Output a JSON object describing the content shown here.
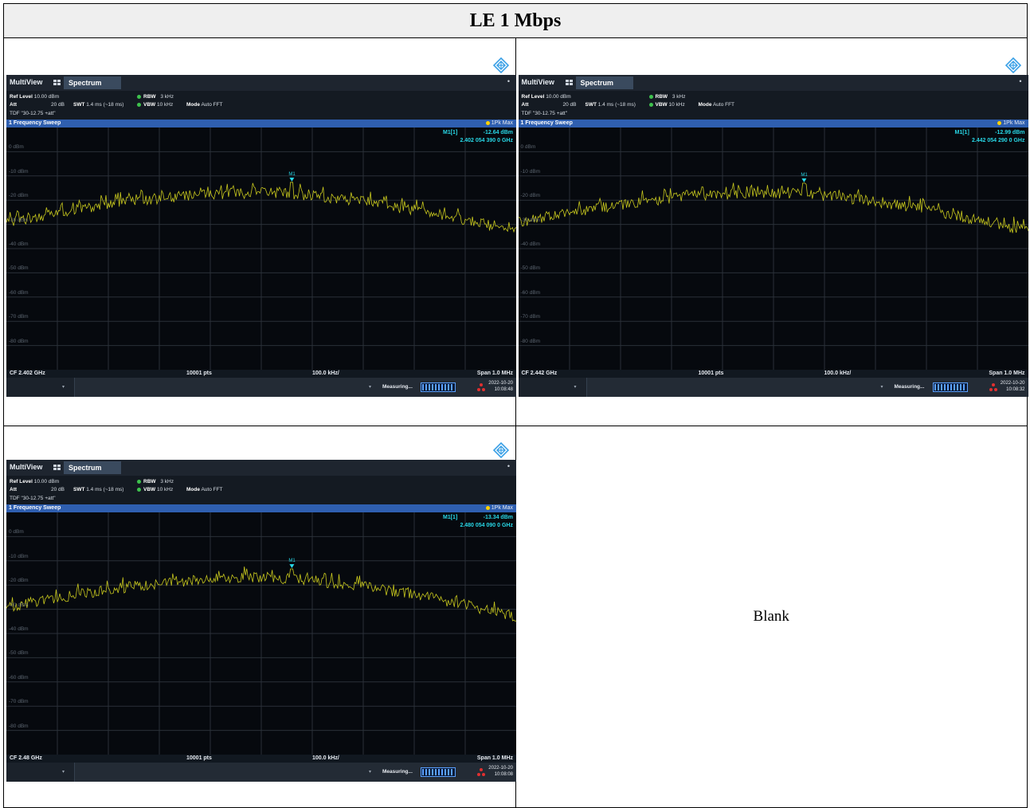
{
  "document": {
    "title": "LE 1 Mbps",
    "blank_label": "Blank"
  },
  "colors": {
    "header_bg": "#efefef",
    "screen_bg": "#06090e",
    "trace": "#c8c81e",
    "marker": "#28d7e6",
    "sweep_bar": "#2f5fb0"
  },
  "icons": [
    "rs-logo-icon",
    "multiview-grid-icon",
    "menu-dot-icon",
    "status-triangle-icon"
  ],
  "analyzers": [
    {
      "tab_multiview": "MultiView",
      "tab_spectrum": "Spectrum",
      "ref_level_label": "Ref Level",
      "ref_level_value": "10.00 dBm",
      "att_label": "Att",
      "att_value": "20 dB",
      "swt_label": "SWT",
      "swt_value": "1.4 ms (~18 ms)",
      "rbw_label": "RBW",
      "rbw_value": "3 kHz",
      "vbw_label": "VBW",
      "vbw_value": "10 kHz",
      "mode_label": "Mode",
      "mode_value": "Auto FFT",
      "tdf": "TDF \"30-12.75 +att\"",
      "sweep_title": "1 Frequency Sweep",
      "detector": "1Pk Max",
      "marker_name": "M1[1]",
      "marker_level": "-12.64 dBm",
      "marker_freq": "2.402 054 390 0 GHz",
      "marker_tag": "M1",
      "y_labels": [
        "0 dBm",
        "-10 dBm",
        "-20 dBm",
        "-30 dBm",
        "-40 dBm",
        "-50 dBm",
        "-60 dBm",
        "-70 dBm",
        "-80 dBm"
      ],
      "cf": "CF 2.402 GHz",
      "points": "10001 pts",
      "div": "100.0 kHz/",
      "span": "Span 1.0 MHz",
      "status": "Measuring...",
      "date": "2022-10-20",
      "time": "10:08:48",
      "chart_data": {
        "type": "line",
        "x_center_ghz": 2.402,
        "span_mhz": 1.0,
        "ylim": [
          -90,
          10
        ],
        "marker": {
          "x_ghz": 2.40205439,
          "y_dbm": -12.64
        },
        "grid": true
      }
    },
    {
      "tab_multiview": "MultiView",
      "tab_spectrum": "Spectrum",
      "ref_level_label": "Ref Level",
      "ref_level_value": "10.00 dBm",
      "att_label": "Att",
      "att_value": "20 dB",
      "swt_label": "SWT",
      "swt_value": "1.4 ms (~18 ms)",
      "rbw_label": "RBW",
      "rbw_value": "3 kHz",
      "vbw_label": "VBW",
      "vbw_value": "10 kHz",
      "mode_label": "Mode",
      "mode_value": "Auto FFT",
      "tdf": "TDF \"30-12.75 +att\"",
      "sweep_title": "1 Frequency Sweep",
      "detector": "1Pk Max",
      "marker_name": "M1[1]",
      "marker_level": "-12.99 dBm",
      "marker_freq": "2.442 054 290 0 GHz",
      "marker_tag": "M1",
      "y_labels": [
        "0 dBm",
        "-10 dBm",
        "-20 dBm",
        "-30 dBm",
        "-40 dBm",
        "-50 dBm",
        "-60 dBm",
        "-70 dBm",
        "-80 dBm"
      ],
      "cf": "CF 2.442 GHz",
      "points": "10001 pts",
      "div": "100.0 kHz/",
      "span": "Span 1.0 MHz",
      "status": "Measuring...",
      "date": "2022-10-20",
      "time": "10:08:32",
      "chart_data": {
        "type": "line",
        "x_center_ghz": 2.442,
        "span_mhz": 1.0,
        "ylim": [
          -90,
          10
        ],
        "marker": {
          "x_ghz": 2.44205429,
          "y_dbm": -12.99
        },
        "grid": true
      }
    },
    {
      "tab_multiview": "MultiView",
      "tab_spectrum": "Spectrum",
      "ref_level_label": "Ref Level",
      "ref_level_value": "10.00 dBm",
      "att_label": "Att",
      "att_value": "20 dB",
      "swt_label": "SWT",
      "swt_value": "1.4 ms (~18 ms)",
      "rbw_label": "RBW",
      "rbw_value": "3 kHz",
      "vbw_label": "VBW",
      "vbw_value": "10 kHz",
      "mode_label": "Mode",
      "mode_value": "Auto FFT",
      "tdf": "TDF \"30-12.75 +att\"",
      "sweep_title": "1 Frequency Sweep",
      "detector": "1Pk Max",
      "marker_name": "M1[1]",
      "marker_level": "-13.34 dBm",
      "marker_freq": "2.480 054 090 0 GHz",
      "marker_tag": "M1",
      "y_labels": [
        "0 dBm",
        "-10 dBm",
        "-20 dBm",
        "-30 dBm",
        "-40 dBm",
        "-50 dBm",
        "-60 dBm",
        "-70 dBm",
        "-80 dBm"
      ],
      "cf": "CF 2.48 GHz",
      "points": "10001 pts",
      "div": "100.0 kHz/",
      "span": "Span 1.0 MHz",
      "status": "Measuring...",
      "date": "2022-10-20",
      "time": "10:08:08",
      "chart_data": {
        "type": "line",
        "x_center_ghz": 2.48,
        "span_mhz": 1.0,
        "ylim": [
          -90,
          10
        ],
        "marker": {
          "x_ghz": 2.48005409,
          "y_dbm": -13.34
        },
        "grid": true
      }
    }
  ]
}
